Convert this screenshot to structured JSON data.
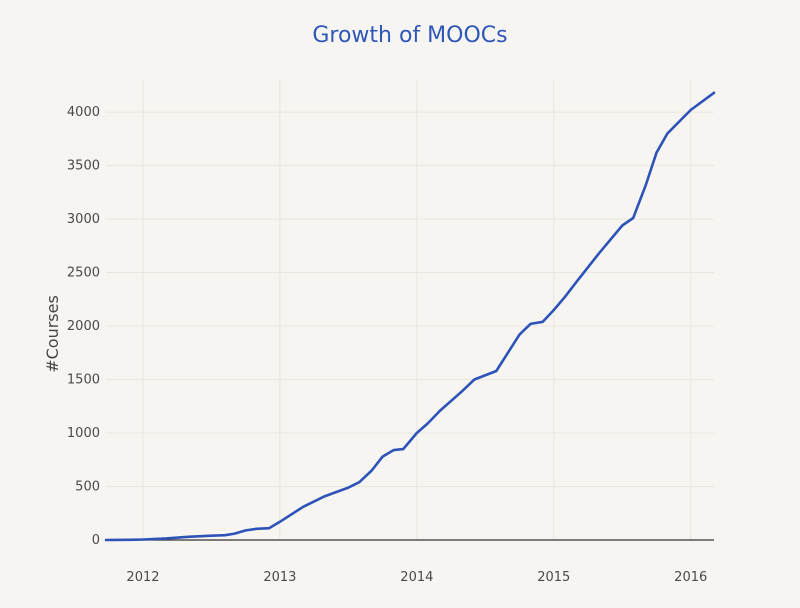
{
  "colors": {
    "background": "#f7f5f1",
    "title": "#2f57b8",
    "line": "#2e53b8",
    "grid": "#e9e6df",
    "zero_line": "#333333"
  },
  "chart_data": {
    "type": "line",
    "title": "Growth of MOOCs",
    "xlabel": "",
    "ylabel": "#Courses",
    "grid": true,
    "legend": "none",
    "xlim": [
      2011.73,
      2016.17
    ],
    "ylim": [
      0,
      4300
    ],
    "xticks": [
      2012,
      2013,
      2014,
      2015,
      2016
    ],
    "xtick_labels": [
      "2012",
      "2013",
      "2014",
      "2015",
      "2016"
    ],
    "yticks": [
      0,
      500,
      1000,
      1500,
      2000,
      2500,
      3000,
      3500,
      4000
    ],
    "ytick_labels": [
      "0",
      "500",
      "1000",
      "1500",
      "2000",
      "2500",
      "3000",
      "3500",
      "4000"
    ],
    "series": [
      {
        "x": [
          2011.73,
          2011.9,
          2012.0,
          2012.17,
          2012.33,
          2012.5,
          2012.6,
          2012.67,
          2012.75,
          2012.83,
          2012.92,
          2013.0,
          2013.17,
          2013.33,
          2013.5,
          2013.58,
          2013.67,
          2013.75,
          2013.83,
          2013.9,
          2014.0,
          2014.08,
          2014.17,
          2014.33,
          2014.42,
          2014.58,
          2014.67,
          2014.75,
          2014.83,
          2014.92,
          2015.0,
          2015.08,
          2015.17,
          2015.33,
          2015.5,
          2015.58,
          2015.67,
          2015.75,
          2015.83,
          2016.0,
          2016.17
        ],
        "y": [
          0,
          2,
          5,
          15,
          30,
          40,
          45,
          60,
          90,
          105,
          110,
          170,
          310,
          410,
          490,
          540,
          650,
          780,
          840,
          850,
          1000,
          1090,
          1210,
          1390,
          1500,
          1580,
          1760,
          1920,
          2020,
          2040,
          2150,
          2270,
          2420,
          2680,
          2940,
          3010,
          3310,
          3620,
          3800,
          4020,
          4180
        ]
      }
    ]
  }
}
